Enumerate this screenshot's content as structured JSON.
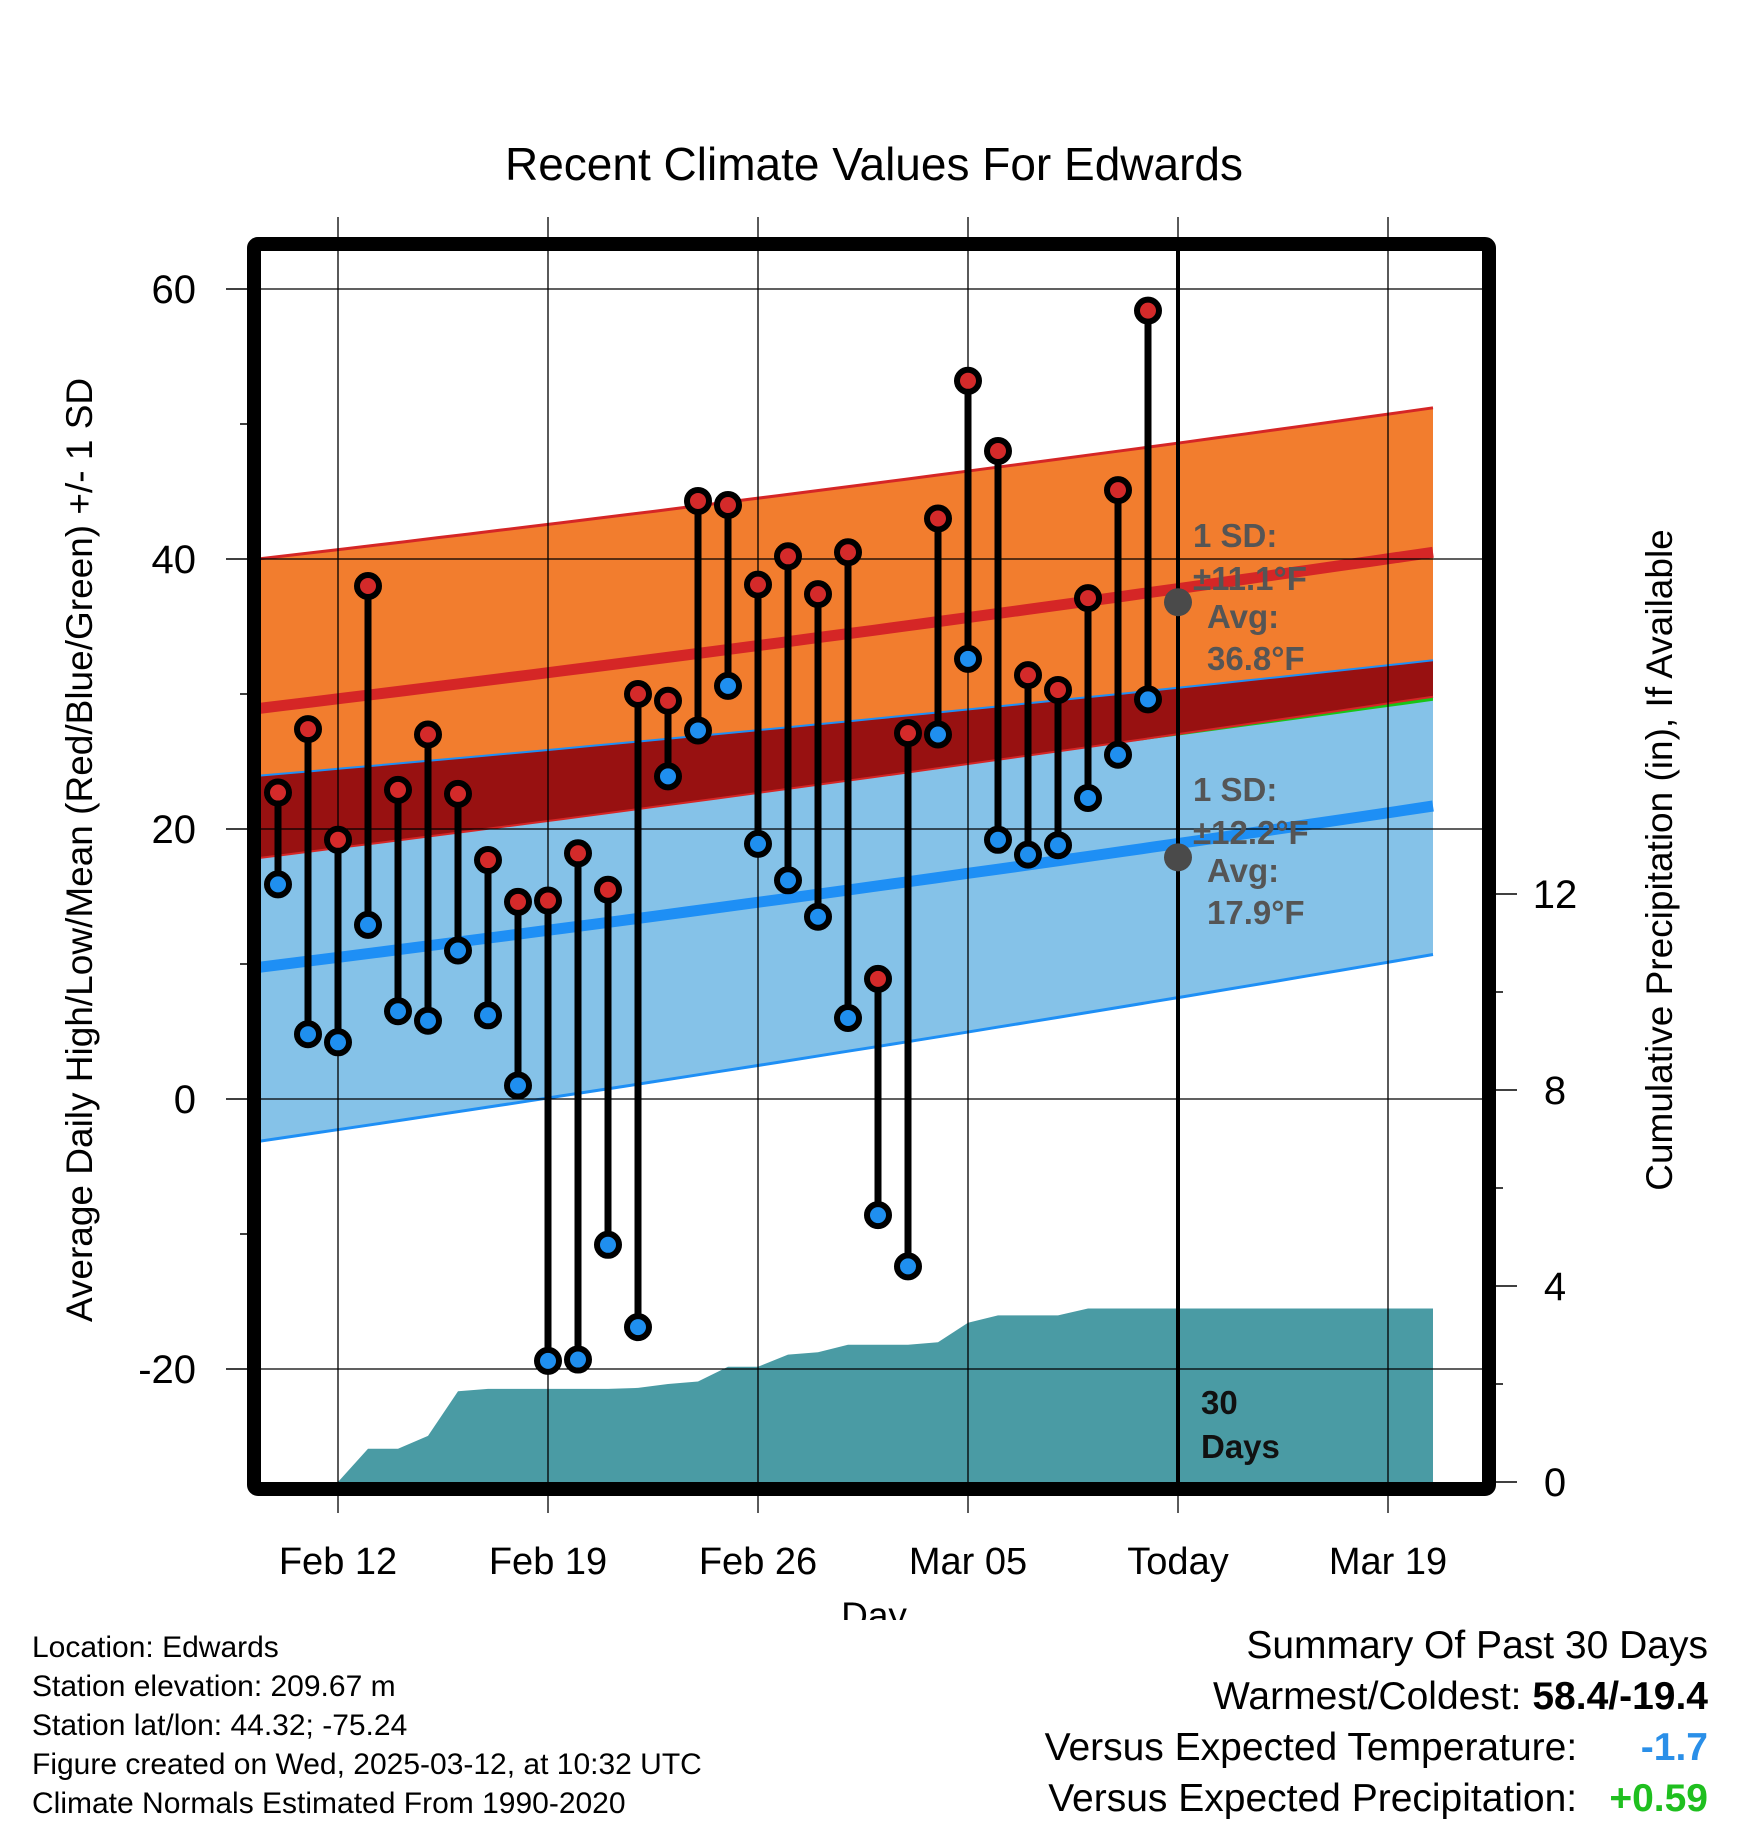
{
  "chart_data": {
    "type": "line",
    "title": "Recent Climate Values For Edwards",
    "xlabel": "Day",
    "ylabel_left": "Average Daily High/Low/Mean (Red/Blue/Green) +/- 1 SD",
    "ylabel_right": "Cumulative Precipitation (in), If Available",
    "x_ticks": [
      "Feb 12",
      "Feb 19",
      "Feb 26",
      "Mar 05",
      "Today",
      "Mar 19"
    ],
    "xlim_days": [
      -33,
      8.5
    ],
    "ylim_temp": [
      -27,
      64
    ],
    "y_ticks_temp": [
      -20,
      0,
      20,
      40,
      60
    ],
    "y_ticks_precip": [
      0,
      4,
      8,
      12
    ],
    "ylim_precip": [
      0,
      24
    ],
    "colors": {
      "high_band": "#f27d2e",
      "high_line": "#d52626",
      "low_band": "#85c2e8",
      "low_line": "#1e8ff5",
      "mean_band": "#19c416",
      "overlap": "#981111",
      "precip": "#4a9ba4",
      "high_dot": "#d42a2a",
      "low_dot": "#1f8fef",
      "avg_dot": "#4a4a4a",
      "annot": "#555555"
    },
    "normals": {
      "days": [
        -33,
        8.5
      ],
      "high_avg": [
        28.3,
        40.5
      ],
      "high_sd_upper": [
        39.4,
        51.2
      ],
      "high_sd_lower": [
        17.2,
        29.8
      ],
      "low_avg": [
        9.1,
        21.7
      ],
      "low_sd_upper": [
        23.5,
        32.5
      ],
      "low_sd_lower": [
        -3.9,
        10.7
      ],
      "mean_avg": [
        18.7,
        31.1
      ],
      "mean_sd_upper": [
        20.2,
        32.0
      ],
      "mean_sd_lower": [
        17.9,
        29.5
      ]
    },
    "daily": [
      {
        "day": -30,
        "high": 22.7,
        "low": 15.9
      },
      {
        "day": -29,
        "high": 27.4,
        "low": 4.8
      },
      {
        "day": -28,
        "high": 19.2,
        "low": 4.2
      },
      {
        "day": -27,
        "high": 38.0,
        "low": 12.9
      },
      {
        "day": -26,
        "high": 22.9,
        "low": 6.5
      },
      {
        "day": -25,
        "high": 27.0,
        "low": 5.8
      },
      {
        "day": -24,
        "high": 22.6,
        "low": 11.0
      },
      {
        "day": -23,
        "high": 17.7,
        "low": 6.2
      },
      {
        "day": -22,
        "high": 14.6,
        "low": 1.0
      },
      {
        "day": -21,
        "high": 14.7,
        "low": -19.4
      },
      {
        "day": -20,
        "high": 18.2,
        "low": -19.3
      },
      {
        "day": -19,
        "high": 15.5,
        "low": -10.8
      },
      {
        "day": -18,
        "high": 30.0,
        "low": -16.9
      },
      {
        "day": -17,
        "high": 29.5,
        "low": 23.9
      },
      {
        "day": -16,
        "high": 44.3,
        "low": 27.3
      },
      {
        "day": -15,
        "high": 44.0,
        "low": 30.6
      },
      {
        "day": -14,
        "high": 38.1,
        "low": 18.9
      },
      {
        "day": -13,
        "high": 40.2,
        "low": 16.2
      },
      {
        "day": -12,
        "high": 37.4,
        "low": 13.5
      },
      {
        "day": -11,
        "high": 40.5,
        "low": 6.0
      },
      {
        "day": -10,
        "high": 8.9,
        "low": -8.6
      },
      {
        "day": -9,
        "high": 27.1,
        "low": -12.4
      },
      {
        "day": -8,
        "high": 43.0,
        "low": 27.0
      },
      {
        "day": -7,
        "high": 53.2,
        "low": 32.6
      },
      {
        "day": -6,
        "high": 48.0,
        "low": 19.2
      },
      {
        "day": -5,
        "high": 31.4,
        "low": 18.1
      },
      {
        "day": -4,
        "high": 30.3,
        "low": 18.8
      },
      {
        "day": -3,
        "high": 37.1,
        "low": 22.3
      },
      {
        "day": -2,
        "high": 45.1,
        "low": 25.5
      },
      {
        "day": -1,
        "high": 58.4,
        "low": 29.6
      }
    ],
    "precip_cumulative": [
      {
        "day": -28,
        "in": 0.0
      },
      {
        "day": -27,
        "in": 0.68
      },
      {
        "day": -26,
        "in": 0.68
      },
      {
        "day": -25,
        "in": 0.94
      },
      {
        "day": -24,
        "in": 1.85
      },
      {
        "day": -23,
        "in": 1.9
      },
      {
        "day": -22,
        "in": 1.9
      },
      {
        "day": -21,
        "in": 1.9
      },
      {
        "day": -20,
        "in": 1.9
      },
      {
        "day": -19,
        "in": 1.9
      },
      {
        "day": -18,
        "in": 1.92
      },
      {
        "day": -17,
        "in": 2.0
      },
      {
        "day": -16,
        "in": 2.05
      },
      {
        "day": -15,
        "in": 2.35
      },
      {
        "day": -14,
        "in": 2.35
      },
      {
        "day": -13,
        "in": 2.6
      },
      {
        "day": -12,
        "in": 2.65
      },
      {
        "day": -11,
        "in": 2.8
      },
      {
        "day": -10,
        "in": 2.8
      },
      {
        "day": -9,
        "in": 2.8
      },
      {
        "day": -8,
        "in": 2.85
      },
      {
        "day": -7,
        "in": 3.25
      },
      {
        "day": -6,
        "in": 3.4
      },
      {
        "day": -5,
        "in": 3.4
      },
      {
        "day": -4,
        "in": 3.4
      },
      {
        "day": -3,
        "in": 3.54
      },
      {
        "day": -2,
        "in": 3.54
      },
      {
        "day": -1,
        "in": 3.54
      },
      {
        "day": 0,
        "in": 3.54
      },
      {
        "day": 8.5,
        "in": 3.54
      }
    ],
    "today_avg_high": 36.8,
    "today_avg_low": 17.9,
    "annotations": {
      "high_sd_label": "1 SD:",
      "high_sd_value": "±11.1°F",
      "high_avg_label": "Avg:",
      "high_avg_value": "36.8°F",
      "low_sd_label": "1 SD:",
      "low_sd_value": "±12.2°F",
      "low_avg_label": "Avg:",
      "low_avg_value": "17.9°F",
      "days_number": "30",
      "days_word": "Days"
    }
  },
  "footer": {
    "location": "Location: Edwards",
    "elevation": "Station elevation: 209.67 m",
    "latlon": "Station lat/lon: 44.32; -75.24",
    "created": "Figure created on Wed, 2025-03-12, at 10:32 UTC",
    "normals": "Climate Normals Estimated From 1990-2020"
  },
  "summary": {
    "title": "Summary Of Past 30 Days",
    "warm_cold_label": "Warmest/Coldest:",
    "warm_cold_value": "58.4/-19.4",
    "temp_label": "Versus Expected Temperature:",
    "temp_value": "-1.7",
    "precip_label": "Versus Expected Precipitation:",
    "precip_value": "+0.59"
  }
}
